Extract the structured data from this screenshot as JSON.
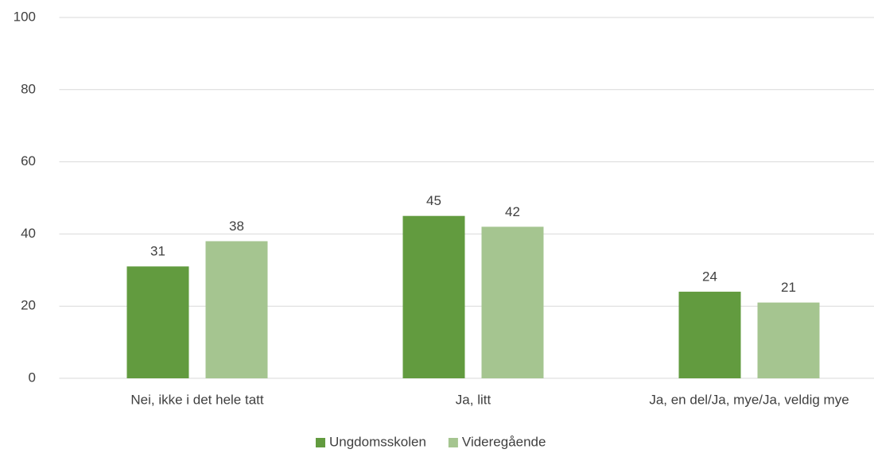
{
  "chart_data": {
    "type": "bar",
    "categories": [
      "Nei, ikke i det hele tatt",
      "Ja, litt",
      "Ja, en del/Ja, mye/Ja, veldig mye"
    ],
    "series": [
      {
        "name": "Ungdomsskolen",
        "color": "#629b3f",
        "values": [
          31,
          45,
          24
        ]
      },
      {
        "name": "Videregående",
        "color": "#a5c590",
        "values": [
          38,
          42,
          21
        ]
      }
    ],
    "ylim": [
      0,
      100
    ],
    "yticks": [
      0,
      20,
      40,
      60,
      80,
      100
    ],
    "grid": true,
    "legend": "bottom"
  }
}
